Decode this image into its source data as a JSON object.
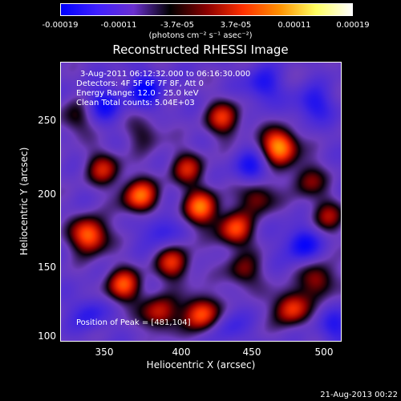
{
  "colorbar": {
    "ticks": [
      "-0.00019",
      "-0.00011",
      "-3.7e-05",
      "3.7e-05",
      "0.00011",
      "0.00019"
    ],
    "units": "(photons cm⁻² s⁻¹ asec⁻²)",
    "colors": [
      "#0000ff",
      "#4020ff",
      "#6a30d0",
      "#000000",
      "#8a0000",
      "#ff3000",
      "#ff9000",
      "#ffff60",
      "#ffffff"
    ]
  },
  "title": "Reconstructed RHESSI Image",
  "annotations": {
    "time_range": "3-Aug-2011 06:12:32.000 to 06:16:30.000",
    "detectors": "Detectors: 4F 5F 6F 7F 8F, Att 0",
    "energy": "Energy Range: 12.0 - 25.0 keV",
    "clean": "Clean     Total counts: 5.04E+03",
    "peak": "Position of Peak = [481,104]"
  },
  "axes": {
    "xlabel": "Heliocentric X (arcsec)",
    "ylabel": "Heliocentric Y (arcsec)",
    "xticks": [
      "350",
      "400",
      "450",
      "500"
    ],
    "yticks": [
      "100",
      "150",
      "200",
      "250"
    ],
    "xrange": [
      317,
      510
    ],
    "yrange": [
      97,
      289
    ]
  },
  "timestamp": "21-Aug-2013 00:22"
}
